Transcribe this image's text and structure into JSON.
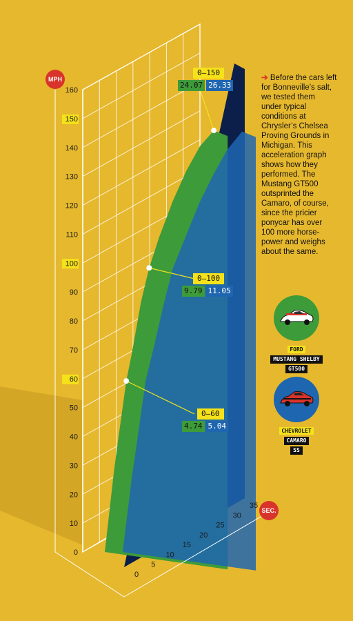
{
  "chart_data": {
    "type": "area",
    "title": "",
    "ylabel": "MPH",
    "xlabel": "SEC.",
    "ylim": [
      0,
      160
    ],
    "xlim": [
      0,
      35
    ],
    "y_ticks": [
      0,
      10,
      20,
      30,
      40,
      50,
      60,
      70,
      80,
      90,
      100,
      110,
      120,
      130,
      140,
      150,
      160
    ],
    "y_ticks_highlighted": [
      60,
      100,
      150
    ],
    "x_ticks": [
      0,
      5,
      10,
      15,
      20,
      25,
      30,
      35
    ],
    "series": [
      {
        "name": "Ford Mustang Shelby GT500",
        "color": "#3e9b3a",
        "x": [
          0,
          1,
          2,
          3,
          4.74,
          6,
          8,
          9.79,
          12,
          15,
          18,
          21,
          24.07
        ],
        "y": [
          0,
          14,
          28,
          40,
          60,
          70,
          88,
          100,
          111,
          124,
          135,
          144,
          150
        ]
      },
      {
        "name": "Chevrolet Camaro SS",
        "color": "#1f66b0",
        "x": [
          0,
          1,
          2,
          3,
          5.04,
          7,
          9,
          11.05,
          14,
          17,
          20,
          23,
          26.33
        ],
        "y": [
          0,
          13,
          26,
          37,
          60,
          73,
          87,
          100,
          112,
          124,
          134,
          143,
          150
        ]
      }
    ],
    "annotations": [
      {
        "label": "0–60",
        "ford": "4.74",
        "chevy": "5.04"
      },
      {
        "label": "0–100",
        "ford": "9.79",
        "chevy": "11.05"
      },
      {
        "label": "0–150",
        "ford": "24.07",
        "chevy": "26.33"
      }
    ]
  },
  "axis_badges": {
    "y": "MPH",
    "x": "SEC."
  },
  "callouts": {
    "c150": {
      "label": "0–150",
      "ford": "24.07",
      "chevy": "26.33"
    },
    "c100": {
      "label": "0–100",
      "ford": "9.79",
      "chevy": "11.05"
    },
    "c60": {
      "label": "0–60",
      "ford": "4.74",
      "chevy": "5.04"
    }
  },
  "caption": "Before the cars left for Bonneville’s salt, we tested them under typical conditions at Chrysler’s Chelsea Proving Grounds in Michigan. This acceleration graph shows how they performed. The Mustang GT500 outsprinted the Camaro, of course, since the pricier ponycar has over 100 more horse-power and weighs about the same.",
  "cars": [
    {
      "make": "FORD",
      "model_line1": "MUSTANG SHELBY",
      "model_line2": "GT500",
      "circle_color": "#3e9b3a",
      "car_color": "#ffffff",
      "stripe_color": "#d9342b"
    },
    {
      "make": "CHEVROLET",
      "model_line1": "CAMARO",
      "model_line2": "SS",
      "circle_color": "#1f66b0",
      "car_color": "#d9342b",
      "stripe_color": "#111111"
    }
  ]
}
